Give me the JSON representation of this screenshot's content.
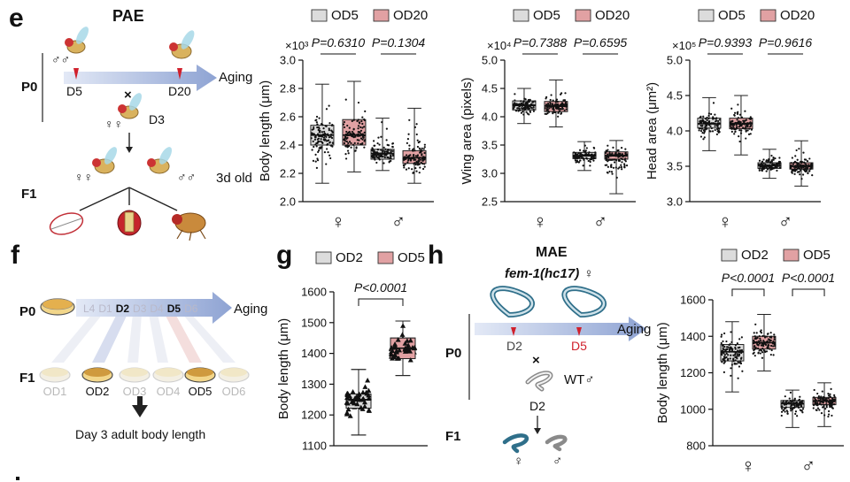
{
  "panels": {
    "e": {
      "label": "e",
      "title": "PAE",
      "schematic": {
        "gen_p0": "P0",
        "gen_f1": "F1",
        "male_top": "♂♂",
        "time_d5": "D5",
        "time_d20": "D20",
        "aging": "Aging",
        "cross": "×",
        "female_label": "♀♀",
        "time_d3": "D3",
        "f1_female": "♀♀",
        "f1_male": "♂♂",
        "age_label": "3d old"
      }
    },
    "f": {
      "label": "f",
      "schematic": {
        "gen_p0": "P0",
        "gen_f1": "F1",
        "aging": "Aging",
        "timeline": [
          "L4",
          "D1",
          "D2",
          "D3",
          "D4",
          "D5",
          "D6"
        ],
        "timeline_highlight": [
          "D2",
          "D5"
        ],
        "f1_groups": [
          "OD1",
          "OD2",
          "OD3",
          "OD4",
          "OD5",
          "OD6"
        ],
        "f1_highlight": [
          "OD2",
          "OD5"
        ],
        "readout": "Day 3 adult body length"
      }
    },
    "g": {
      "label": "g"
    },
    "h": {
      "label": "h",
      "title": "MAE",
      "strain": "fem-1(hc17) ♀",
      "schematic": {
        "gen_p0": "P0",
        "gen_f1": "F1",
        "time_d2": "D2",
        "time_d5": "D5",
        "aging": "Aging",
        "cross": "×",
        "wt_male": "WT♂",
        "time_d2b": "D2",
        "f1_female": "♀",
        "f1_male": "♂"
      }
    }
  },
  "colors": {
    "group_a_fill": "#dcdcdc",
    "group_b_fill": "#e1a1a3",
    "group_b_fill_bright": "#e07d86",
    "arrow_blue": "#9fb1d9",
    "highlight_red": "#d0202c"
  },
  "chart_data": [
    {
      "id": "e-body",
      "type": "boxplot",
      "legend": [
        "OD5",
        "OD20"
      ],
      "legend_position": "top",
      "categories": [
        "♀",
        "♂"
      ],
      "ylabel": "Body length (μm)",
      "scale_label": "×10³",
      "ylim": [
        2.0,
        3.0
      ],
      "yticks": [
        "2.0",
        "2.2",
        "2.4",
        "2.6",
        "2.8",
        "3.0"
      ],
      "pvalues": [
        "P=0.6310",
        "P=0.1304"
      ],
      "series": [
        {
          "name": "OD5",
          "boxes": [
            {
              "min": 2.13,
              "q1": 2.4,
              "median": 2.47,
              "q3": 2.54,
              "max": 2.83
            },
            {
              "min": 2.22,
              "q1": 2.3,
              "median": 2.34,
              "q3": 2.37,
              "max": 2.59
            }
          ]
        },
        {
          "name": "OD20",
          "boxes": [
            {
              "min": 2.21,
              "q1": 2.4,
              "median": 2.47,
              "q3": 2.58,
              "max": 2.85
            },
            {
              "min": 2.13,
              "q1": 2.27,
              "median": 2.31,
              "q3": 2.36,
              "max": 2.66
            }
          ]
        }
      ]
    },
    {
      "id": "e-wing",
      "type": "boxplot",
      "legend": [
        "OD5",
        "OD20"
      ],
      "legend_position": "top",
      "categories": [
        "♀",
        "♂"
      ],
      "ylabel": "Wing area (pixels)",
      "scale_label": "×10⁴",
      "ylim": [
        2.5,
        5.0
      ],
      "yticks": [
        "2.5",
        "3.0",
        "3.5",
        "4.0",
        "4.5",
        "5.0"
      ],
      "pvalues": [
        "P=0.7388",
        "P=0.6595"
      ],
      "series": [
        {
          "name": "OD5",
          "boxes": [
            {
              "min": 3.88,
              "q1": 4.12,
              "median": 4.2,
              "q3": 4.28,
              "max": 4.5
            },
            {
              "min": 3.05,
              "q1": 3.26,
              "median": 3.31,
              "q3": 3.37,
              "max": 3.56
            }
          ]
        },
        {
          "name": "OD20",
          "boxes": [
            {
              "min": 3.82,
              "q1": 4.09,
              "median": 4.19,
              "q3": 4.27,
              "max": 4.65
            },
            {
              "min": 2.64,
              "q1": 3.25,
              "median": 3.31,
              "q3": 3.38,
              "max": 3.58
            }
          ]
        }
      ]
    },
    {
      "id": "e-head",
      "type": "boxplot",
      "legend": [
        "OD5",
        "OD20"
      ],
      "legend_position": "top",
      "categories": [
        "♀",
        "♂"
      ],
      "ylabel": "Head area (μm²)",
      "scale_label": "×10⁵",
      "ylim": [
        3.0,
        5.0
      ],
      "yticks": [
        "3.0",
        "3.5",
        "4.0",
        "4.5",
        "5.0"
      ],
      "pvalues": [
        "P=0.9393",
        "P=0.9616"
      ],
      "series": [
        {
          "name": "OD5",
          "boxes": [
            {
              "min": 3.72,
              "q1": 4.04,
              "median": 4.1,
              "q3": 4.18,
              "max": 4.47
            },
            {
              "min": 3.33,
              "q1": 3.47,
              "median": 3.51,
              "q3": 3.55,
              "max": 3.74
            }
          ]
        },
        {
          "name": "OD20",
          "boxes": [
            {
              "min": 3.66,
              "q1": 4.03,
              "median": 4.1,
              "q3": 4.18,
              "max": 4.5
            },
            {
              "min": 3.22,
              "q1": 3.46,
              "median": 3.5,
              "q3": 3.55,
              "max": 3.86
            }
          ]
        }
      ]
    },
    {
      "id": "g",
      "type": "boxplot",
      "legend": [
        "OD2",
        "OD5"
      ],
      "legend_position": "top",
      "categories": [
        "OD2",
        "OD5"
      ],
      "show_category_labels": false,
      "ylabel": "Body length (μm)",
      "ylim": [
        1100,
        1600
      ],
      "yticks": [
        "1100",
        "1200",
        "1300",
        "1400",
        "1500",
        "1600"
      ],
      "pvalues": [
        "P<0.0001"
      ],
      "series": [
        {
          "name": "OD2",
          "boxes": [
            {
              "min": 1135,
              "q1": 1222,
              "median": 1250,
              "q3": 1268,
              "max": 1348
            }
          ]
        },
        {
          "name": "OD5",
          "boxes": [
            {
              "min": 1328,
              "q1": 1383,
              "median": 1417,
              "q3": 1450,
              "max": 1505
            }
          ]
        }
      ]
    },
    {
      "id": "h",
      "type": "boxplot",
      "legend": [
        "OD2",
        "OD5"
      ],
      "legend_position": "top",
      "categories": [
        "♀",
        "♂"
      ],
      "ylabel": "Body length (μm)",
      "ylim": [
        800,
        1600
      ],
      "yticks": [
        "800",
        "1000",
        "1200",
        "1400",
        "1600"
      ],
      "pvalues": [
        "P<0.0001",
        "P<0.0001"
      ],
      "series": [
        {
          "name": "OD2",
          "boxes": [
            {
              "min": 1095,
              "q1": 1265,
              "median": 1315,
              "q3": 1355,
              "max": 1480
            },
            {
              "min": 900,
              "q1": 1010,
              "median": 1030,
              "q3": 1048,
              "max": 1105
            }
          ]
        },
        {
          "name": "OD5",
          "boxes": [
            {
              "min": 1210,
              "q1": 1330,
              "median": 1365,
              "q3": 1400,
              "max": 1520
            },
            {
              "min": 905,
              "q1": 1025,
              "median": 1045,
              "q3": 1065,
              "max": 1145
            }
          ]
        }
      ]
    }
  ]
}
